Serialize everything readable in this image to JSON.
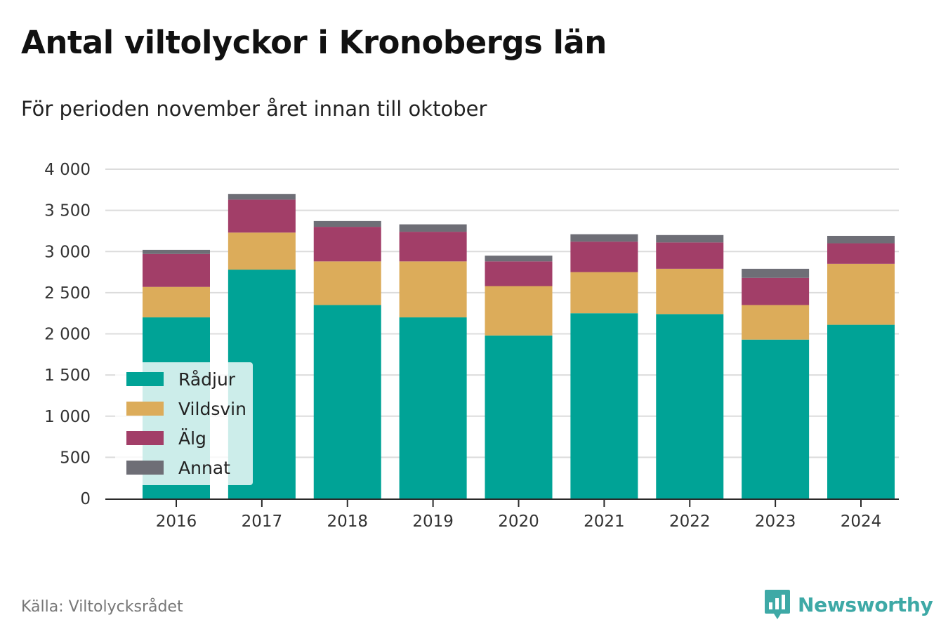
{
  "header": {
    "title": "Antal viltolyckor i Kronobergs län",
    "subtitle": "För perioden november året innan till oktober"
  },
  "footer": {
    "source": "Källa: Viltolycksrådet",
    "brand": "Newsworthy"
  },
  "chart_data": {
    "type": "bar",
    "stacked": true,
    "categories": [
      "2016",
      "2017",
      "2018",
      "2019",
      "2020",
      "2021",
      "2022",
      "2023",
      "2024"
    ],
    "series": [
      {
        "name": "Rådjur",
        "color": "#00a396",
        "values": [
          2200,
          2780,
          2350,
          2200,
          1980,
          2250,
          2240,
          1930,
          2110
        ]
      },
      {
        "name": "Vildsvin",
        "color": "#dcac5a",
        "values": [
          370,
          450,
          530,
          680,
          600,
          500,
          550,
          420,
          740
        ]
      },
      {
        "name": "Älg",
        "color": "#a23e68",
        "values": [
          400,
          400,
          420,
          360,
          300,
          370,
          320,
          330,
          250
        ]
      },
      {
        "name": "Annat",
        "color": "#6e6e76",
        "values": [
          50,
          70,
          70,
          90,
          70,
          90,
          90,
          110,
          90
        ]
      }
    ],
    "y_ticks": [
      0,
      500,
      1000,
      1500,
      2000,
      2500,
      3000,
      3500,
      4000
    ],
    "y_tick_labels": [
      "0",
      "500",
      "1 000",
      "1 500",
      "2 000",
      "2 500",
      "3 000",
      "3 500",
      "4 000"
    ],
    "ylim": [
      0,
      4000
    ],
    "grid": true,
    "legend_position": "bottom-left"
  }
}
